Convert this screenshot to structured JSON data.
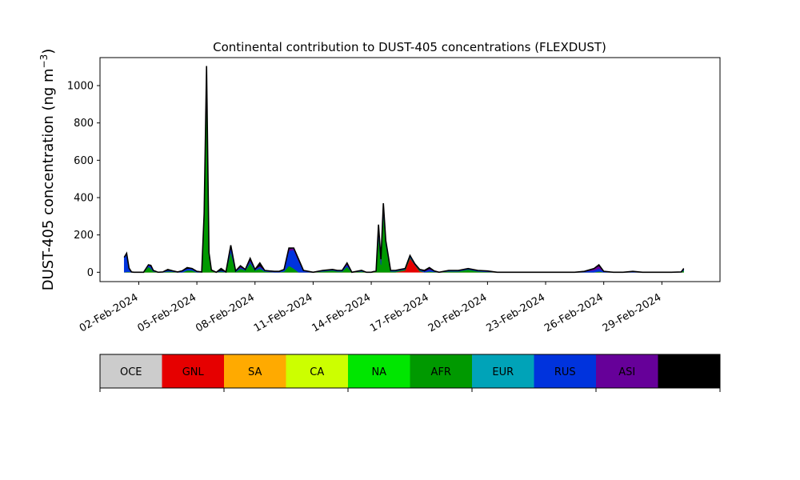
{
  "chart_data": {
    "type": "area",
    "stacked": true,
    "title": "Continental contribution to DUST-405 concentrations (FLEXDUST)",
    "ylabel_text": "DUST-405 concentration (ng m",
    "ylabel_sup": "−3",
    "ylabel_close": ")",
    "xlabel": "",
    "ylim": [
      -50,
      1150
    ],
    "xlim": [
      "2024-01-31",
      "2024-03-03"
    ],
    "yticks": [
      0,
      200,
      400,
      600,
      800,
      1000
    ],
    "xticks": [
      {
        "date": "2024-02-02",
        "label": "02-Feb-2024"
      },
      {
        "date": "2024-02-05",
        "label": "05-Feb-2024"
      },
      {
        "date": "2024-02-08",
        "label": "08-Feb-2024"
      },
      {
        "date": "2024-02-11",
        "label": "11-Feb-2024"
      },
      {
        "date": "2024-02-14",
        "label": "14-Feb-2024"
      },
      {
        "date": "2024-02-17",
        "label": "17-Feb-2024"
      },
      {
        "date": "2024-02-20",
        "label": "20-Feb-2024"
      },
      {
        "date": "2024-02-23",
        "label": "23-Feb-2024"
      },
      {
        "date": "2024-02-26",
        "label": "26-Feb-2024"
      },
      {
        "date": "2024-02-29",
        "label": "29-Feb-2024"
      }
    ],
    "grid": false,
    "legend": {
      "placement": "below",
      "items": [
        {
          "label": "OCE",
          "color": "#cccccc"
        },
        {
          "label": "GNL",
          "color": "#e60000"
        },
        {
          "label": "SA",
          "color": "#ffaa00"
        },
        {
          "label": "CA",
          "color": "#ccff00"
        },
        {
          "label": "NA",
          "color": "#00e600"
        },
        {
          "label": "AFR",
          "color": "#009900"
        },
        {
          "label": "EUR",
          "color": "#00a3b8"
        },
        {
          "label": "RUS",
          "color": "#0033dd"
        },
        {
          "label": "ASI",
          "color": "#660099"
        },
        {
          "label": "AUS",
          "color": "#000000"
        }
      ]
    },
    "x": [
      "2024-02-01T06:00",
      "2024-02-01T09:00",
      "2024-02-01T12:00",
      "2024-02-01T15:00",
      "2024-02-01T18:00",
      "2024-02-02T00:00",
      "2024-02-02T06:00",
      "2024-02-02T12:00",
      "2024-02-02T15:00",
      "2024-02-02T18:00",
      "2024-02-03T00:00",
      "2024-02-03T06:00",
      "2024-02-03T12:00",
      "2024-02-03T18:00",
      "2024-02-04T00:00",
      "2024-02-04T06:00",
      "2024-02-04T12:00",
      "2024-02-04T18:00",
      "2024-02-05T00:00",
      "2024-02-05T06:00",
      "2024-02-05T09:00",
      "2024-02-05T12:00",
      "2024-02-05T15:00",
      "2024-02-05T18:00",
      "2024-02-06T00:00",
      "2024-02-06T06:00",
      "2024-02-06T12:00",
      "2024-02-06T18:00",
      "2024-02-07T00:00",
      "2024-02-07T06:00",
      "2024-02-07T12:00",
      "2024-02-07T18:00",
      "2024-02-08T00:00",
      "2024-02-08T06:00",
      "2024-02-08T12:00",
      "2024-02-08T18:00",
      "2024-02-09T00:00",
      "2024-02-09T06:00",
      "2024-02-09T12:00",
      "2024-02-09T18:00",
      "2024-02-10T00:00",
      "2024-02-10T06:00",
      "2024-02-10T12:00",
      "2024-02-11T00:00",
      "2024-02-11T12:00",
      "2024-02-12T00:00",
      "2024-02-12T06:00",
      "2024-02-12T12:00",
      "2024-02-12T18:00",
      "2024-02-13T00:00",
      "2024-02-13T12:00",
      "2024-02-13T18:00",
      "2024-02-14T00:00",
      "2024-02-14T06:00",
      "2024-02-14T09:00",
      "2024-02-14T12:00",
      "2024-02-14T15:00",
      "2024-02-14T18:00",
      "2024-02-15T00:00",
      "2024-02-15T06:00",
      "2024-02-15T12:00",
      "2024-02-15T18:00",
      "2024-02-16T00:00",
      "2024-02-16T06:00",
      "2024-02-16T12:00",
      "2024-02-16T18:00",
      "2024-02-17T00:00",
      "2024-02-17T06:00",
      "2024-02-17T12:00",
      "2024-02-18T00:00",
      "2024-02-18T12:00",
      "2024-02-19T00:00",
      "2024-02-19T12:00",
      "2024-02-20T00:00",
      "2024-02-20T12:00",
      "2024-02-21T00:00",
      "2024-02-21T12:00",
      "2024-02-22T00:00",
      "2024-02-22T12:00",
      "2024-02-23T00:00",
      "2024-02-23T12:00",
      "2024-02-24T00:00",
      "2024-02-24T12:00",
      "2024-02-25T00:00",
      "2024-02-25T12:00",
      "2024-02-25T18:00",
      "2024-02-26T00:00",
      "2024-02-26T12:00",
      "2024-02-27T00:00",
      "2024-02-27T12:00",
      "2024-02-28T00:00",
      "2024-02-28T12:00",
      "2024-02-29T00:00",
      "2024-02-29T12:00",
      "2024-03-01T00:00",
      "2024-03-01T03:00"
    ],
    "series": [
      {
        "name": "GNL",
        "values": [
          0,
          0,
          0,
          0,
          0,
          0,
          0,
          0,
          0,
          0,
          0,
          0,
          0,
          0,
          0,
          0,
          0,
          0,
          0,
          0,
          0,
          0,
          0,
          0,
          0,
          0,
          0,
          0,
          0,
          0,
          0,
          0,
          0,
          0,
          0,
          0,
          0,
          0,
          0,
          0,
          0,
          0,
          0,
          0,
          0,
          0,
          0,
          0,
          0,
          0,
          0,
          0,
          0,
          0,
          0,
          0,
          0,
          0,
          0,
          0,
          5,
          10,
          75,
          40,
          5,
          0,
          0,
          0,
          0,
          0,
          0,
          0,
          0,
          0,
          0,
          0,
          0,
          0,
          0,
          0,
          0,
          0,
          0,
          0,
          0,
          0,
          0,
          0,
          0,
          0,
          0,
          0,
          0,
          0,
          0,
          0
        ]
      },
      {
        "name": "AFR",
        "values": [
          0,
          2,
          2,
          0,
          0,
          0,
          0,
          30,
          20,
          5,
          0,
          0,
          5,
          3,
          0,
          0,
          10,
          10,
          0,
          0,
          300,
          1020,
          100,
          10,
          0,
          5,
          0,
          110,
          2,
          20,
          10,
          50,
          10,
          20,
          5,
          2,
          0,
          0,
          5,
          35,
          20,
          0,
          0,
          0,
          5,
          10,
          5,
          5,
          30,
          0,
          5,
          0,
          0,
          5,
          200,
          40,
          320,
          150,
          5,
          5,
          5,
          5,
          5,
          0,
          5,
          0,
          5,
          2,
          0,
          5,
          5,
          15,
          5,
          2,
          0,
          0,
          0,
          0,
          0,
          0,
          0,
          0,
          0,
          0,
          0,
          5,
          0,
          0,
          0,
          0,
          0,
          0,
          0,
          0,
          0,
          10
        ]
      },
      {
        "name": "RUS",
        "values": [
          80,
          95,
          20,
          2,
          0,
          0,
          0,
          8,
          10,
          5,
          0,
          2,
          5,
          5,
          2,
          8,
          10,
          10,
          5,
          2,
          5,
          10,
          5,
          2,
          0,
          5,
          2,
          20,
          5,
          5,
          5,
          10,
          5,
          10,
          5,
          5,
          5,
          5,
          10,
          80,
          100,
          60,
          10,
          0,
          5,
          5,
          5,
          5,
          10,
          0,
          5,
          0,
          0,
          2,
          10,
          20,
          20,
          10,
          5,
          5,
          5,
          5,
          10,
          5,
          5,
          5,
          10,
          5,
          0,
          5,
          5,
          5,
          5,
          5,
          0,
          0,
          0,
          0,
          0,
          0,
          0,
          0,
          0,
          5,
          10,
          15,
          5,
          0,
          0,
          5,
          0,
          0,
          0,
          0,
          2,
          5
        ]
      },
      {
        "name": "ASI",
        "values": [
          0,
          0,
          0,
          0,
          0,
          0,
          0,
          2,
          2,
          0,
          0,
          0,
          0,
          0,
          0,
          0,
          0,
          0,
          0,
          0,
          0,
          10,
          0,
          0,
          0,
          0,
          0,
          5,
          0,
          5,
          0,
          5,
          0,
          5,
          0,
          0,
          0,
          0,
          0,
          10,
          10,
          10,
          0,
          0,
          0,
          0,
          0,
          0,
          5,
          0,
          0,
          0,
          0,
          0,
          5,
          10,
          10,
          5,
          0,
          0,
          0,
          0,
          0,
          0,
          0,
          0,
          5,
          0,
          0,
          0,
          0,
          0,
          0,
          0,
          0,
          0,
          0,
          0,
          0,
          0,
          0,
          0,
          0,
          0,
          10,
          15,
          0,
          0,
          0,
          0,
          0,
          0,
          0,
          0,
          0,
          0
        ]
      },
      {
        "name": "AUS",
        "values": [
          0,
          5,
          0,
          0,
          0,
          0,
          0,
          0,
          5,
          0,
          0,
          0,
          5,
          0,
          0,
          0,
          5,
          0,
          0,
          0,
          10,
          65,
          0,
          0,
          0,
          10,
          0,
          10,
          0,
          5,
          0,
          10,
          0,
          15,
          0,
          0,
          0,
          0,
          0,
          5,
          0,
          0,
          0,
          0,
          0,
          0,
          0,
          0,
          5,
          0,
          0,
          0,
          0,
          0,
          40,
          0,
          20,
          5,
          0,
          0,
          0,
          0,
          0,
          0,
          0,
          5,
          5,
          0,
          0,
          0,
          0,
          0,
          0,
          0,
          0,
          0,
          0,
          0,
          0,
          0,
          0,
          0,
          0,
          0,
          0,
          5,
          0,
          0,
          0,
          0,
          0,
          0,
          0,
          0,
          0,
          5
        ]
      }
    ]
  }
}
